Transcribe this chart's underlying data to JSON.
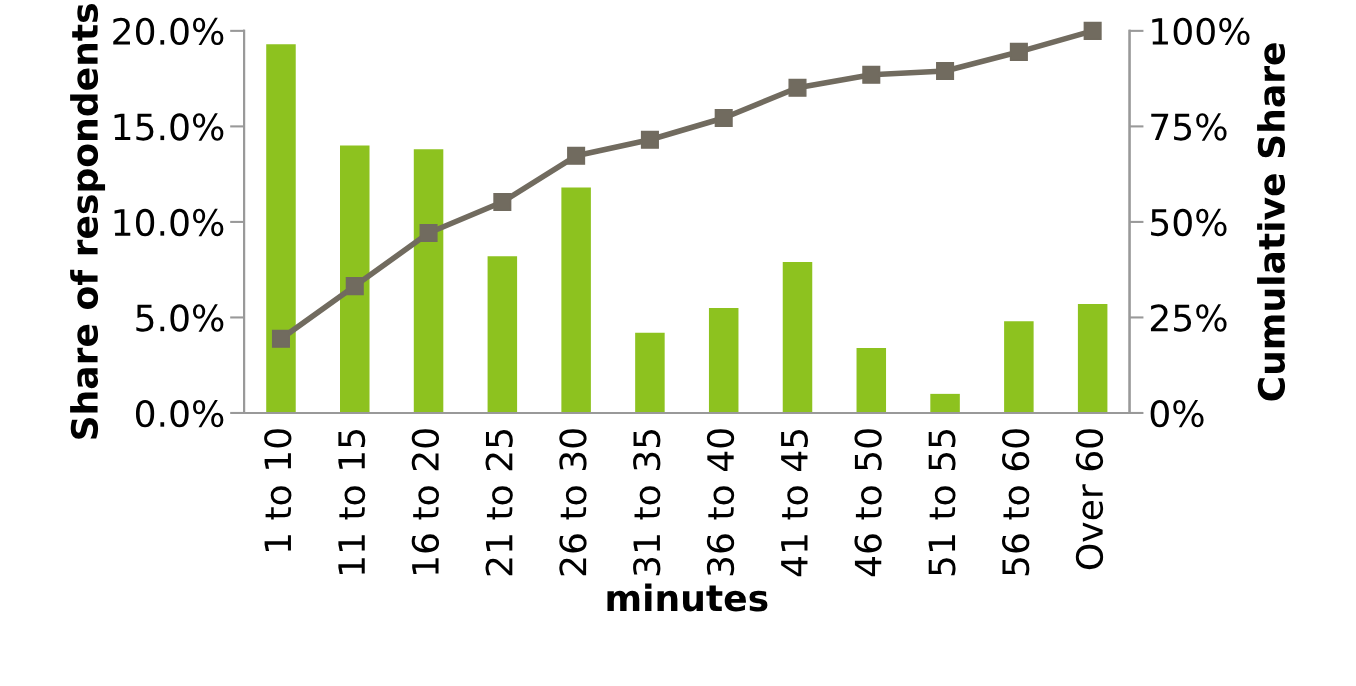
{
  "chart_data": {
    "type": "bar",
    "xlabel": "minutes",
    "ylabel": "Share of respondents",
    "y2label": "Cumulative Share",
    "categories": [
      "1 to 10",
      "11 to 15",
      "16 to 20",
      "21 to 25",
      "26 to 30",
      "31 to 35",
      "36 to 40",
      "41 to 45",
      "46 to 50",
      "51 to 55",
      "56 to 60",
      "Over 60"
    ],
    "series": [
      {
        "color": "#8dc21f",
        "values": [
          19.3,
          14.0,
          13.8,
          8.2,
          11.8,
          4.2,
          5.5,
          7.9,
          3.4,
          1.0,
          4.8,
          5.7
        ]
      },
      {
        "type": "line",
        "axis": "y2",
        "color": "#716b5f",
        "marker": "square",
        "line_style": "solid",
        "values": [
          19.4,
          33.2,
          47.1,
          55.2,
          67.3,
          71.5,
          77.2,
          85.1,
          88.5,
          89.5,
          94.5,
          100
        ]
      }
    ],
    "ylim": [
      0,
      20
    ],
    "yticks": [
      {
        "value": 0,
        "label": "0.0%"
      },
      {
        "value": 5,
        "label": "5.0%"
      },
      {
        "value": 10,
        "label": "10.0%"
      },
      {
        "value": 15,
        "label": "15.0%"
      },
      {
        "value": 20,
        "label": "20.0%"
      }
    ],
    "y2lim": [
      0,
      100
    ],
    "y2ticks": [
      {
        "value": 0,
        "label": "0%"
      },
      {
        "value": 25,
        "label": "25%"
      },
      {
        "value": 50,
        "label": "50%"
      },
      {
        "value": 75,
        "label": "75%"
      },
      {
        "value": 100,
        "label": "100%"
      }
    ],
    "grid": false,
    "legend": false
  }
}
